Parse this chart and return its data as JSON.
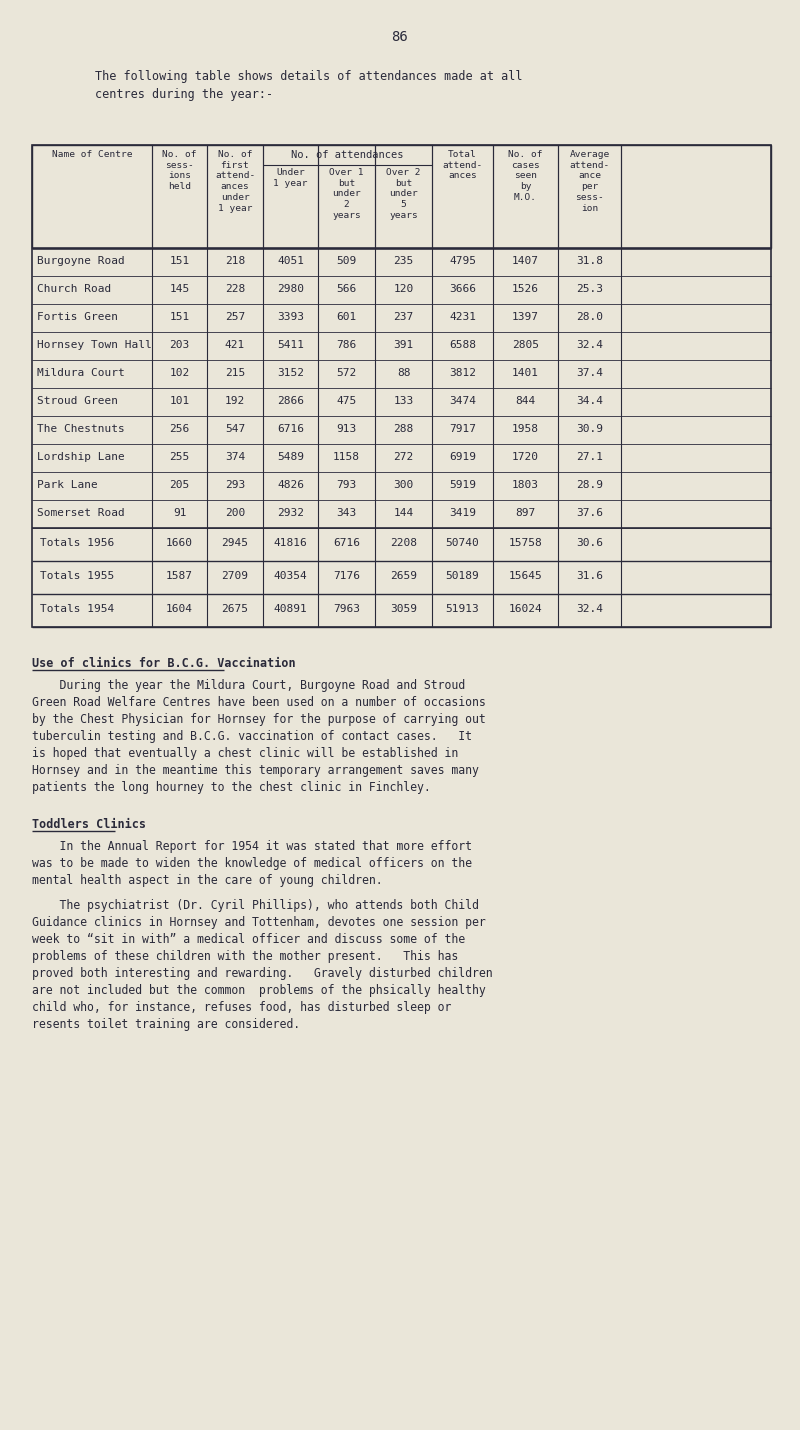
{
  "page_number": "86",
  "bg_color": "#eae6d9",
  "text_color": "#2a2a3a",
  "table_headers": [
    "Name of Centre",
    "No. of\nsess-\nions\nheld",
    "No. of\nfirst\nattend-\nances\nunder\n1 year",
    "Under\n1 year",
    "Over 1\nbut\nunder\n2\nyears",
    "Over 2\nbut\nunder\n5\nyears",
    "Total\nattend-\nances",
    "No. of\ncases\nseen\nby\nM.O.",
    "Average\nattend-\nance\nper\nsess-\nion"
  ],
  "table_data": [
    [
      "Burgoyne Road",
      "151",
      "218",
      "4051",
      "509",
      "235",
      "4795",
      "1407",
      "31.8"
    ],
    [
      "Church Road",
      "145",
      "228",
      "2980",
      "566",
      "120",
      "3666",
      "1526",
      "25.3"
    ],
    [
      "Fortis Green",
      "151",
      "257",
      "3393",
      "601",
      "237",
      "4231",
      "1397",
      "28.0"
    ],
    [
      "Hornsey Town Hall",
      "203",
      "421",
      "5411",
      "786",
      "391",
      "6588",
      "2805",
      "32.4"
    ],
    [
      "Mildura Court",
      "102",
      "215",
      "3152",
      "572",
      "88",
      "3812",
      "1401",
      "37.4"
    ],
    [
      "Stroud Green",
      "101",
      "192",
      "2866",
      "475",
      "133",
      "3474",
      "844",
      "34.4"
    ],
    [
      "The Chestnuts",
      "256",
      "547",
      "6716",
      "913",
      "288",
      "7917",
      "1958",
      "30.9"
    ],
    [
      "Lordship Lane",
      "255",
      "374",
      "5489",
      "1158",
      "272",
      "6919",
      "1720",
      "27.1"
    ],
    [
      "Park Lane",
      "205",
      "293",
      "4826",
      "793",
      "300",
      "5919",
      "1803",
      "28.9"
    ],
    [
      "Somerset Road",
      "91",
      "200",
      "2932",
      "343",
      "144",
      "3419",
      "897",
      "37.6"
    ]
  ],
  "totals_data": [
    [
      "Totals 1956",
      "1660",
      "2945",
      "41816",
      "6716",
      "2208",
      "50740",
      "15758",
      "30.6"
    ],
    [
      "Totals 1955",
      "1587",
      "2709",
      "40354",
      "7176",
      "2659",
      "50189",
      "15645",
      "31.6"
    ],
    [
      "Totals 1954",
      "1604",
      "2675",
      "40891",
      "7963",
      "3059",
      "51913",
      "16024",
      "32.4"
    ]
  ],
  "section1_title": "Use of clinics for B.C.G. Vaccination",
  "section1_lines": [
    "    During the year the Mildura Court, Burgoyne Road and Stroud",
    "Green Road Welfare Centres have been used on a number of occasions",
    "by the Chest Physician for Hornsey for the purpose of carrying out",
    "tuberculin testing and B.C.G. vaccination of contact cases.   It",
    "is hoped that eventually a chest clinic will be established in",
    "Hornsey and in the meantime this temporary arrangement saves many",
    "patients the long hourney to the chest clinic in Finchley."
  ],
  "section2_title": "Toddlers Clinics",
  "section2_para1_lines": [
    "    In the Annual Report for 1954 it was stated that more effort",
    "was to be made to widen the knowledge of medical officers on the",
    "mental health aspect in the care of young children."
  ],
  "section2_para2_lines": [
    "    The psychiatrist (Dr. Cyril Phillips), who attends both Child",
    "Guidance clinics in Hornsey and Tottenham, devotes one session per",
    "week to “sit in with” a medical officer and discuss some of the",
    "problems of these children with the mother present.   This has",
    "proved both interesting and rewarding.   Gravely disturbed children",
    "are not included but the common  problems of the phsically healthy",
    "child who, for instance, refuses food, has disturbed sleep or",
    "resents toilet training are considered."
  ]
}
